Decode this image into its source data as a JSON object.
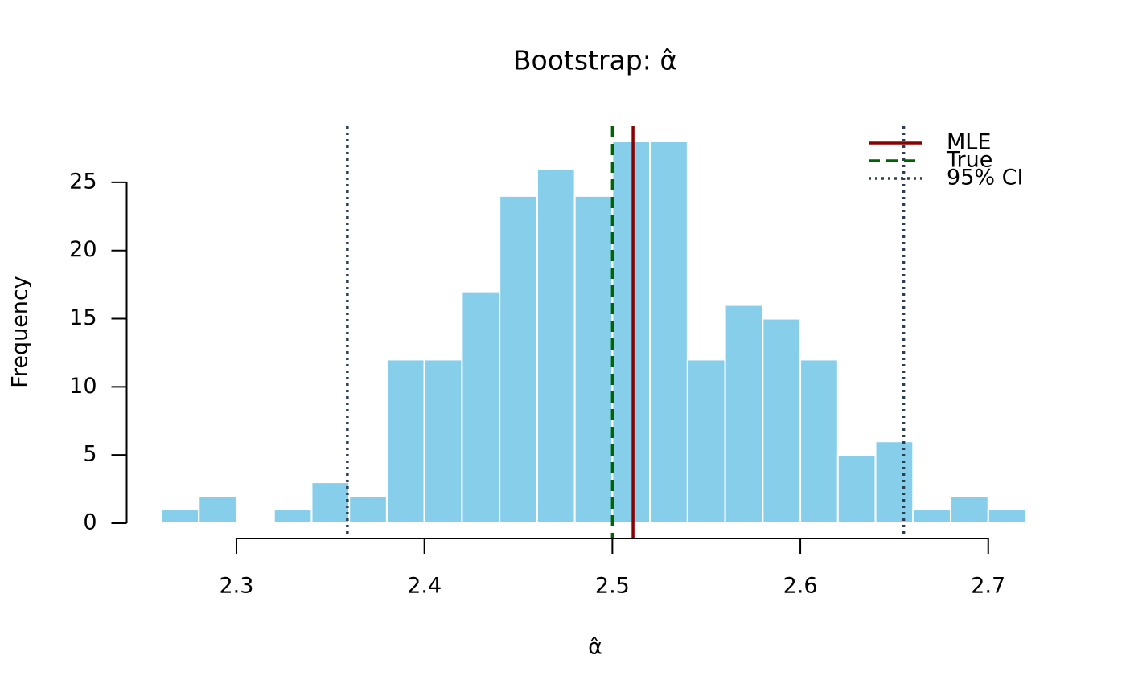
{
  "chart_data": {
    "type": "histogram",
    "title": "Bootstrap: α̂",
    "xlabel": "α̂",
    "ylabel": "Frequency",
    "bins": [
      2.26,
      2.28,
      2.3,
      2.32,
      2.34,
      2.36,
      2.38,
      2.4,
      2.42,
      2.44,
      2.46,
      2.48,
      2.5,
      2.52,
      2.54,
      2.56,
      2.58,
      2.6,
      2.62,
      2.64,
      2.66,
      2.68,
      2.7,
      2.72
    ],
    "values": [
      1,
      2,
      0,
      1,
      3,
      2,
      12,
      12,
      17,
      24,
      26,
      24,
      28,
      28,
      12,
      16,
      15,
      12,
      5,
      6,
      1,
      2,
      1
    ],
    "color": "#87ceeb",
    "edgecolor": "#ffffff",
    "xlim": [
      2.2416,
      2.7384
    ],
    "ylim": [
      -1.12,
      29.12
    ],
    "xticks": [
      2.3,
      2.4,
      2.5,
      2.6,
      2.7
    ],
    "yticks": [
      0,
      5,
      10,
      15,
      20,
      25
    ],
    "vlines": [
      {
        "name": "MLE",
        "color": "#8b0000",
        "style": "solid",
        "values": [
          2.511
        ]
      },
      {
        "name": "True",
        "color": "#006400",
        "style": "dashed",
        "values": [
          2.5
        ]
      },
      {
        "name": "95% CI",
        "color": "#2c3e50",
        "style": "dotted",
        "values": [
          2.359,
          2.655
        ]
      }
    ],
    "legend": "top-right"
  }
}
